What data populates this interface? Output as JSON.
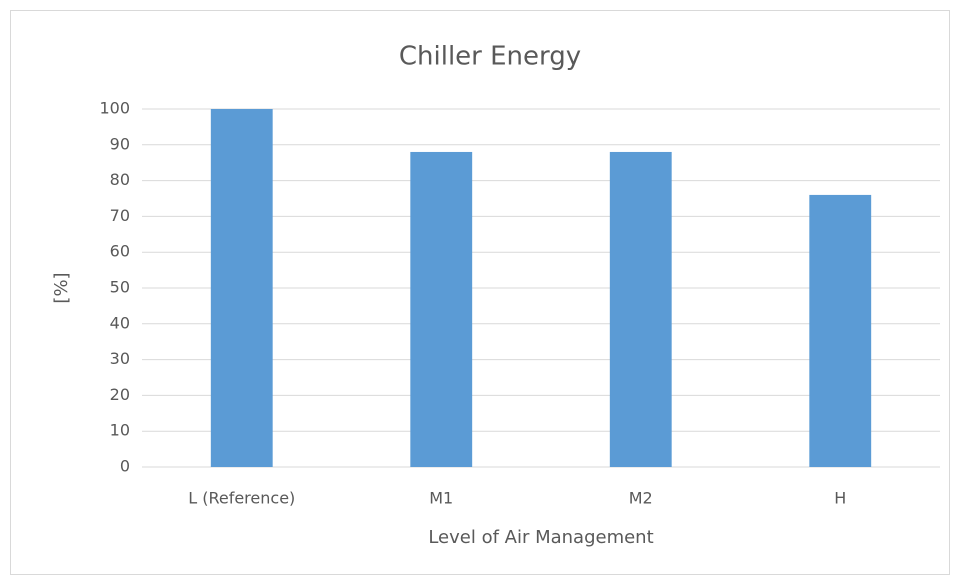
{
  "chart_data": {
    "type": "bar",
    "title": "Chiller Energy",
    "x_label": "Level of Air Management",
    "y_label": "[%]",
    "categories": [
      "L (Reference)",
      "M1",
      "M2",
      "H"
    ],
    "values": [
      100,
      88,
      88,
      76
    ],
    "color": "#5b9bd5",
    "ylim": [
      0,
      100
    ],
    "yticks": [
      0,
      10,
      20,
      30,
      40,
      50,
      60,
      70,
      80,
      90,
      100
    ],
    "grid": true
  }
}
